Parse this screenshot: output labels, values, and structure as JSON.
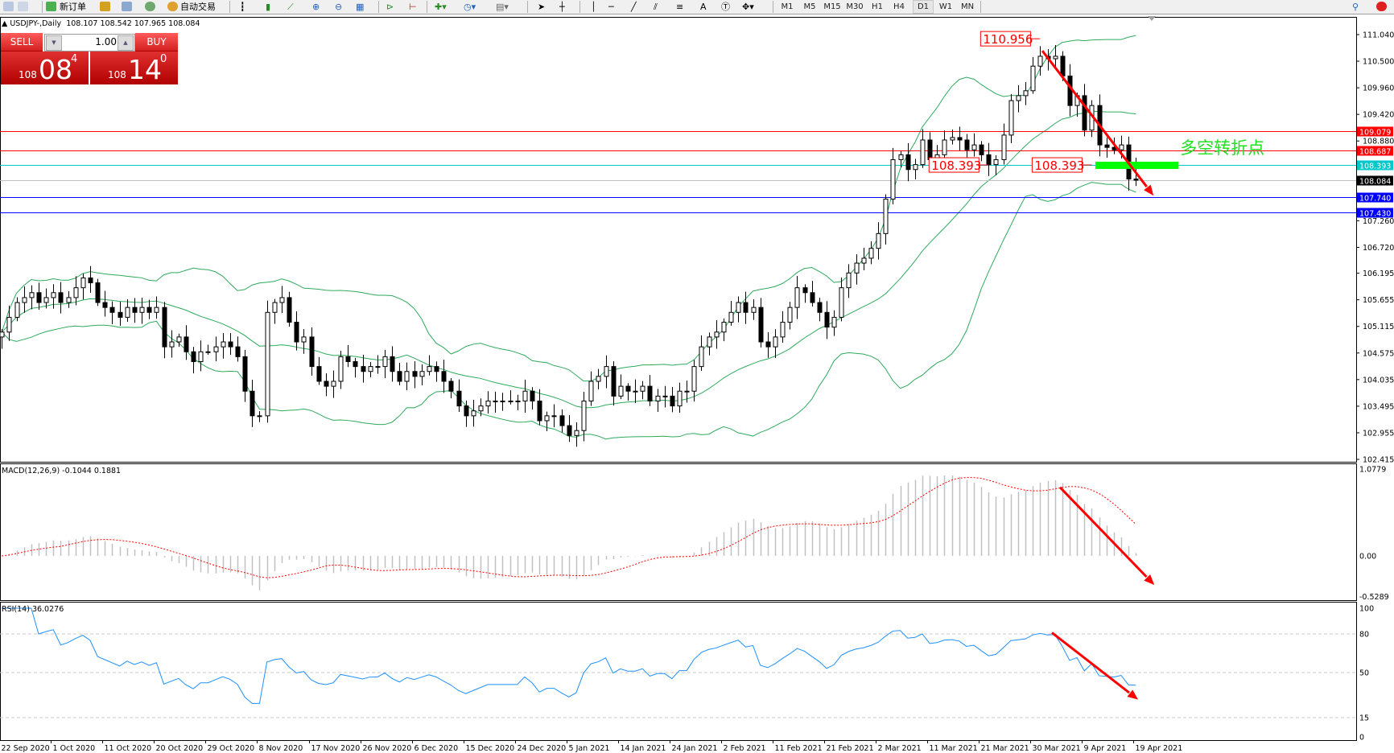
{
  "toolbar": {
    "new_order": "新订单",
    "auto_trading": "自动交易",
    "timeframes": [
      "M1",
      "M5",
      "M15",
      "M30",
      "H1",
      "H4",
      "D1",
      "W1",
      "MN"
    ],
    "active_timeframe": "D1",
    "icons": [
      "chart-icon",
      "zoom-icon",
      "new-order-icon",
      "market-watch-icon",
      "navigator-icon",
      "signals-icon",
      "auto-trading-icon",
      "bar-chart-icon",
      "candlestick-icon",
      "line-chart-icon",
      "zoom-in-icon",
      "zoom-out-icon",
      "tile-icon",
      "autoscroll-icon",
      "chart-shift-icon",
      "indicators-icon",
      "periods-icon",
      "templates-icon",
      "cursor-icon",
      "crosshair-icon",
      "vertical-line-icon",
      "horizontal-line-icon",
      "trendline-icon",
      "fibonacci-icon",
      "channel-icon",
      "text-icon",
      "label-icon",
      "arrows-icon",
      "search-icon",
      "notification-icon"
    ]
  },
  "chart_header": {
    "symbol": "USDJPY-,Daily",
    "open": "108.107",
    "high": "108.542",
    "low": "107.965",
    "close": "108.084"
  },
  "trade_panel": {
    "sell_label": "SELL",
    "buy_label": "BUY",
    "lot": "1.00",
    "bid": {
      "prefix": "108",
      "big": "08",
      "sup": "4"
    },
    "ask": {
      "prefix": "108",
      "big": "14",
      "sup": "0"
    },
    "color": "#d42020"
  },
  "chart_data": [
    {
      "type": "candlestick",
      "symbol": "USDJPY-",
      "period": "Daily",
      "ylim": [
        102.415,
        111.04
      ],
      "y_ticks": [
        "111.040",
        "110.500",
        "109.960",
        "109.420",
        "108.880",
        "107.260",
        "106.720",
        "106.195",
        "105.655",
        "105.115",
        "104.575",
        "104.035",
        "103.495",
        "102.955",
        "102.415"
      ],
      "x_ticks": [
        "22 Sep 2020",
        "1 Oct 2020",
        "11 Oct 2020",
        "20 Oct 2020",
        "29 Oct 2020",
        "8 Nov 2020",
        "17 Nov 2020",
        "26 Nov 2020",
        "6 Dec 2020",
        "15 Dec 2020",
        "24 Dec 2020",
        "5 Jan 2021",
        "14 Jan 2021",
        "24 Jan 2021",
        "2 Feb 2021",
        "11 Feb 2021",
        "21 Feb 2021",
        "2 Mar 2021",
        "11 Mar 2021",
        "21 Mar 2021",
        "30 Mar 2021",
        "9 Apr 2021",
        "19 Apr 2021"
      ],
      "x_tick_every_bars": 7,
      "last_bar": {
        "open": 108.107,
        "high": 108.542,
        "low": 107.965,
        "close": 108.084
      },
      "close": [
        105.0,
        105.3,
        105.6,
        105.7,
        105.8,
        105.6,
        105.7,
        105.8,
        105.6,
        105.7,
        105.9,
        106.1,
        106.0,
        105.6,
        105.5,
        105.4,
        105.3,
        105.5,
        105.4,
        105.5,
        105.4,
        105.5,
        104.7,
        104.8,
        104.9,
        104.6,
        104.4,
        104.6,
        104.6,
        104.7,
        104.8,
        104.7,
        104.5,
        103.8,
        103.3,
        103.3,
        105.4,
        105.6,
        105.7,
        105.2,
        104.8,
        104.9,
        104.3,
        104.0,
        103.9,
        104.0,
        104.5,
        104.4,
        104.3,
        104.2,
        104.3,
        104.3,
        104.5,
        104.2,
        104.0,
        104.2,
        104.1,
        104.2,
        104.3,
        104.2,
        104.0,
        103.8,
        103.5,
        103.3,
        103.4,
        103.5,
        103.6,
        103.6,
        103.6,
        103.6,
        103.6,
        103.8,
        103.6,
        103.2,
        103.3,
        103.3,
        103.1,
        102.9,
        103.0,
        103.6,
        104.0,
        104.1,
        104.3,
        103.7,
        103.9,
        103.8,
        103.8,
        103.9,
        103.6,
        103.7,
        103.7,
        103.5,
        103.8,
        103.8,
        104.3,
        104.7,
        104.9,
        105.0,
        105.2,
        105.4,
        105.6,
        105.4,
        105.5,
        104.8,
        104.7,
        104.9,
        105.2,
        105.5,
        105.9,
        105.8,
        105.6,
        105.4,
        105.1,
        105.3,
        105.9,
        106.2,
        106.4,
        106.5,
        106.7,
        107.0,
        107.7,
        108.5,
        108.6,
        108.3,
        108.4,
        108.9,
        108.5,
        108.6,
        108.9,
        108.95,
        108.9,
        108.7,
        108.8,
        108.6,
        108.4,
        108.5,
        109.0,
        109.7,
        109.8,
        109.9,
        110.4,
        110.6,
        110.55,
        110.6,
        110.2,
        109.6,
        109.8,
        109.1,
        109.6,
        108.8,
        108.75,
        108.7,
        108.8,
        108.107,
        108.084
      ],
      "bollinger": {
        "period": 20,
        "deviation": 2,
        "color": "#2eaa5c"
      },
      "hlines": [
        {
          "price": "109.079",
          "color": "#ff0000"
        },
        {
          "price": "108.687",
          "color": "#ff0000"
        },
        {
          "price": "108.393",
          "color": "#00c8c8"
        },
        {
          "price": "108.084",
          "color": "#c0c0c0",
          "label_bg": "#000000"
        },
        {
          "price": "107.740",
          "color": "#0000ff"
        },
        {
          "price": "107.430",
          "color": "#0000ff"
        }
      ],
      "price_labels": [
        {
          "text": "110.956",
          "price": 110.956,
          "bar": 141
        },
        {
          "text": "108.393",
          "price": 108.393,
          "bar": 134
        },
        {
          "text": "108.393",
          "price": 108.393,
          "bar": 148
        }
      ],
      "green_bar": {
        "price": 108.393,
        "from_bar": 148.5,
        "to_bar": 159.8,
        "color": "#00ff00"
      },
      "note": {
        "text": "多空转折点",
        "bar": 160,
        "price": 108.75,
        "color": "#22e022"
      },
      "arrow": {
        "from": [
          141.3,
          110.71
        ],
        "to": [
          156.4,
          107.77
        ],
        "color": "#ff0000"
      }
    },
    {
      "type": "macd",
      "label": "MACD(12,26,9) -0.1044 0.1881",
      "params": [
        12,
        26,
        9
      ],
      "ylim": [
        -0.5289,
        1.0779
      ],
      "y_ticks": [
        "1.0779",
        "0.00",
        "-0.5289"
      ],
      "histogram_color": "#c0c0c0",
      "signal_color": "#ff0000",
      "arrow": {
        "from": [
          143.7,
          0.85
        ],
        "to": [
          156.5,
          -0.36
        ],
        "color": "#ff0000"
      }
    },
    {
      "type": "rsi",
      "label": "RSI(14) 36.0276",
      "period": 14,
      "ylim": [
        0,
        100
      ],
      "levels": [
        80,
        50,
        15
      ],
      "y_ticks": [
        "100",
        "80",
        "50",
        "15",
        "0"
      ],
      "line_color": "#1e90ff",
      "arrow": {
        "from": [
          142.6,
          81
        ],
        "to": [
          154.3,
          29
        ],
        "color": "#ff0000"
      }
    }
  ]
}
